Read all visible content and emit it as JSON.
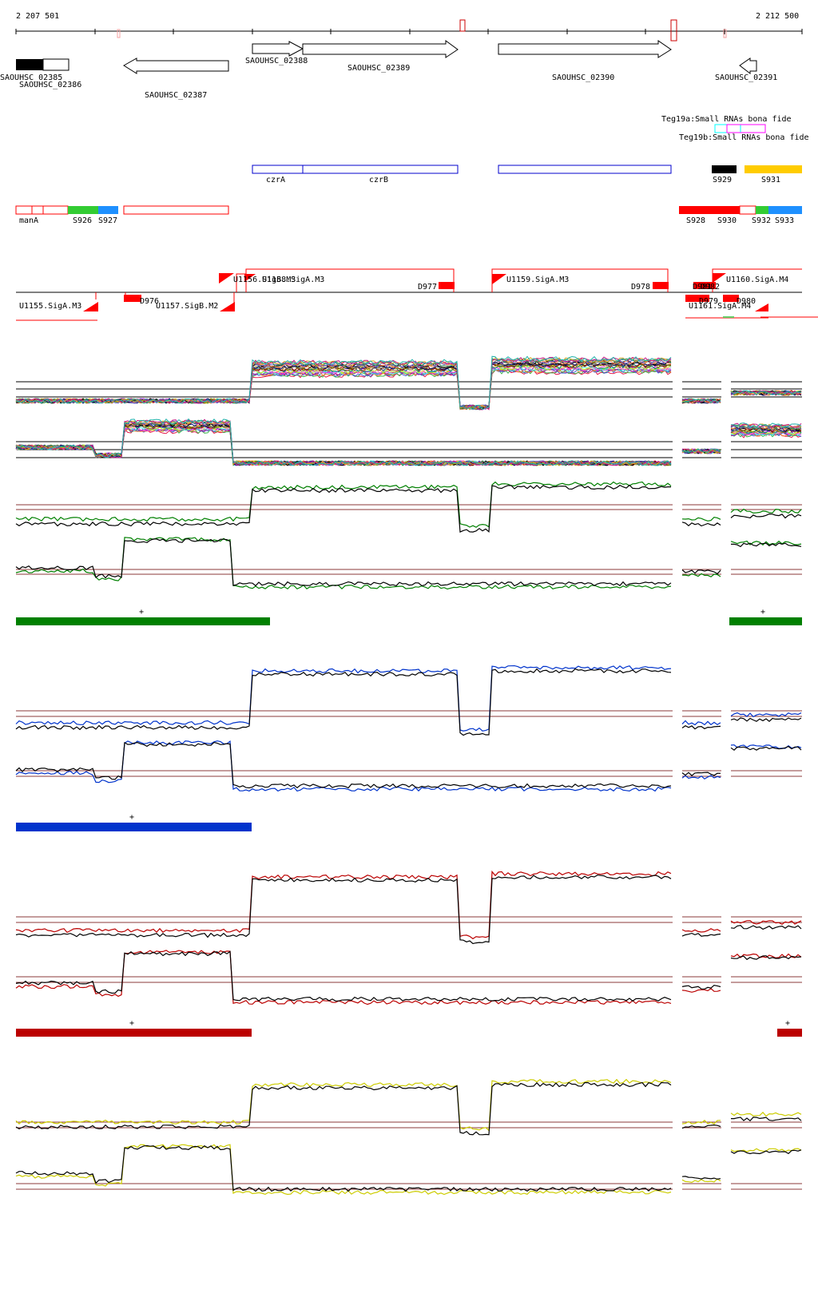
{
  "ruler": {
    "start_label": "2 207 501",
    "end_label": "2 212 500"
  },
  "genes": [
    {
      "label": "SAOUHSC_02385",
      "strand": "+"
    },
    {
      "label": "SAOUHSC_02386",
      "strand": "+"
    },
    {
      "label": "SAOUHSC_02387",
      "strand": "-"
    },
    {
      "label": "SAOUHSC_02388",
      "strand": "+"
    },
    {
      "label": "SAOUHSC_02389",
      "strand": "+"
    },
    {
      "label": "SAOUHSC_02390",
      "strand": "+"
    },
    {
      "label": "SAOUHSC_02391",
      "strand": "-"
    }
  ],
  "small_rnas": [
    {
      "label": "Teg19a:Small RNAs bona fide",
      "color": "#00ffff"
    },
    {
      "label": "Teg19b:Small RNAs bona fide",
      "color": "#ff00ff"
    }
  ],
  "operons": [
    {
      "label": "czrA"
    },
    {
      "label": "czrB"
    }
  ],
  "segments_top": [
    {
      "label": "S929",
      "color": "#000000"
    },
    {
      "label": "S931",
      "color": "#ffcc00"
    }
  ],
  "segments": [
    {
      "label": "manA",
      "color": "#ffffff"
    },
    {
      "label": "S926",
      "color": "#33cc33"
    },
    {
      "label": "S927",
      "color": "#1e90ff"
    },
    {
      "label": "S928",
      "color": "#ff0000"
    },
    {
      "label": "S930",
      "color": "#ff0000"
    },
    {
      "label": "S932",
      "color": "#33cc33"
    },
    {
      "label": "S933",
      "color": "#1e90ff"
    }
  ],
  "promoters": [
    {
      "label": "U1156.SigB.M3"
    },
    {
      "label": "U1158.SigA.M3"
    },
    {
      "label": "U1159.SigA.M3"
    },
    {
      "label": "U1160.SigA.M4"
    },
    {
      "label": "U1155.SigA.M3"
    },
    {
      "label": "U1157.SigB.M2"
    },
    {
      "label": "U1161.SigA.M4"
    }
  ],
  "terminators": [
    {
      "label": "D976"
    },
    {
      "label": "D977"
    },
    {
      "label": "D978"
    },
    {
      "label": "D981"
    },
    {
      "label": "D982"
    },
    {
      "label": "D979"
    },
    {
      "label": "D980"
    }
  ],
  "panels": [
    {
      "id": "multi",
      "color": "#000000"
    },
    {
      "id": "green",
      "color": "#008000",
      "marker": "+"
    },
    {
      "id": "blue",
      "color": "#0033cc",
      "marker": "+"
    },
    {
      "id": "red",
      "color": "#bb0000",
      "marker": "+"
    },
    {
      "id": "yellow",
      "color": "#cccc00"
    }
  ],
  "colors": {
    "threshold": "#8b3a3a",
    "annotation_red": "#ff0000",
    "gene_outline": "#000000",
    "operon_outline": "#0000cc"
  }
}
